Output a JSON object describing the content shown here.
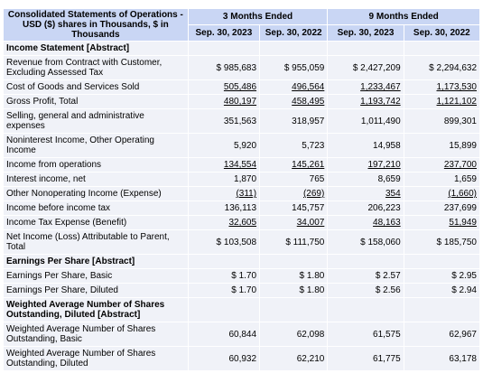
{
  "header": {
    "title": "Consolidated Statements of Operations - USD ($) shares in Thousands, $ in Thousands",
    "period_3m": "3 Months Ended",
    "period_9m": "9 Months Ended",
    "dates": [
      "Sep. 30, 2023",
      "Sep. 30, 2022",
      "Sep. 30, 2023",
      "Sep. 30, 2022"
    ]
  },
  "rows": [
    {
      "label": "Income Statement [Abstract]",
      "section": true,
      "values": [
        "",
        "",
        "",
        ""
      ]
    },
    {
      "label": "Revenue from Contract with Customer, Excluding Assessed Tax",
      "values": [
        "$ 985,683",
        "$ 955,059",
        "$ 2,427,209",
        "$ 2,294,632"
      ]
    },
    {
      "label": "Cost of Goods and Services Sold",
      "values": [
        "505,486",
        "496,564",
        "1,233,467",
        "1,173,530"
      ]
    },
    {
      "label": "Gross Profit, Total",
      "values": [
        "480,197",
        "458,495",
        "1,193,742",
        "1,121,102"
      ]
    },
    {
      "label": "Selling, general and administrative expenses",
      "values": [
        "351,563",
        "318,957",
        "1,011,490",
        "899,301"
      ]
    },
    {
      "label": "Noninterest Income, Other Operating Income",
      "values": [
        "5,920",
        "5,723",
        "14,958",
        "15,899"
      ]
    },
    {
      "label": "Income from operations",
      "values": [
        "134,554",
        "145,261",
        "197,210",
        "237,700"
      ]
    },
    {
      "label": "Interest income, net",
      "values": [
        "1,870",
        "765",
        "8,659",
        "1,659"
      ]
    },
    {
      "label": "Other Nonoperating Income (Expense)",
      "values": [
        "(311)",
        "(269)",
        "354",
        "(1,660)"
      ]
    },
    {
      "label": "Income before income tax",
      "values": [
        "136,113",
        "145,757",
        "206,223",
        "237,699"
      ]
    },
    {
      "label": "Income Tax Expense (Benefit)",
      "values": [
        "32,605",
        "34,007",
        "48,163",
        "51,949"
      ]
    },
    {
      "label": "Net Income (Loss) Attributable to Parent, Total",
      "values": [
        "$ 103,508",
        "$ 111,750",
        "$ 158,060",
        "$ 185,750"
      ]
    },
    {
      "label": "Earnings Per Share [Abstract]",
      "section": true,
      "values": [
        "",
        "",
        "",
        ""
      ]
    },
    {
      "label": "Earnings Per Share, Basic",
      "values": [
        "$ 1.70",
        "$ 1.80",
        "$ 2.57",
        "$ 2.95"
      ]
    },
    {
      "label": "Earnings Per Share, Diluted",
      "values": [
        "$ 1.70",
        "$ 1.80",
        "$ 2.56",
        "$ 2.94"
      ]
    },
    {
      "label": "Weighted Average Number of Shares Outstanding, Diluted [Abstract]",
      "section": true,
      "values": [
        "",
        "",
        "",
        ""
      ]
    },
    {
      "label": "Weighted Average Number of Shares Outstanding, Basic",
      "values": [
        "60,844",
        "62,098",
        "61,575",
        "62,967"
      ]
    },
    {
      "label": "Weighted Average Number of Shares Outstanding, Diluted",
      "values": [
        "60,932",
        "62,210",
        "61,775",
        "63,178"
      ]
    }
  ]
}
